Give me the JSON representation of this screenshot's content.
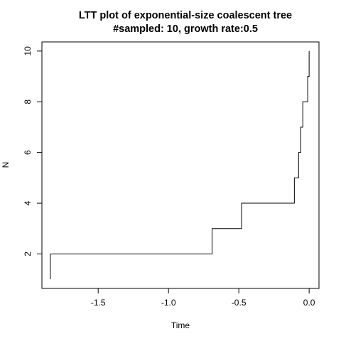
{
  "chart_data": {
    "type": "line",
    "plot_style": "step",
    "title": "LTT plot of exponential-size coalescent tree",
    "subtitle": "#sampled: 10, growth rate:0.5",
    "xlabel": "Time",
    "ylabel": "N",
    "xlim": [
      -1.9,
      0.07
    ],
    "ylim": [
      0.64,
      10.36
    ],
    "x_ticks": [
      -1.5,
      -1.0,
      -0.5,
      0.0
    ],
    "x_tick_labels": [
      "-1.5",
      "-1.0",
      "-0.5",
      "0.0"
    ],
    "y_ticks": [
      2,
      4,
      6,
      8,
      10
    ],
    "y_tick_labels": [
      "2",
      "4",
      "6",
      "8",
      "10"
    ],
    "grid": false,
    "legend": "none",
    "series": [
      {
        "color": "#000000",
        "points": [
          {
            "x": -1.84,
            "y": 1
          },
          {
            "x": -1.84,
            "y": 2
          },
          {
            "x": -0.69,
            "y": 2
          },
          {
            "x": -0.69,
            "y": 3
          },
          {
            "x": -0.48,
            "y": 3
          },
          {
            "x": -0.48,
            "y": 4
          },
          {
            "x": -0.105,
            "y": 4
          },
          {
            "x": -0.105,
            "y": 5
          },
          {
            "x": -0.075,
            "y": 5
          },
          {
            "x": -0.075,
            "y": 6
          },
          {
            "x": -0.06,
            "y": 6
          },
          {
            "x": -0.06,
            "y": 7
          },
          {
            "x": -0.045,
            "y": 7
          },
          {
            "x": -0.045,
            "y": 8
          },
          {
            "x": -0.01,
            "y": 8
          },
          {
            "x": -0.01,
            "y": 9
          },
          {
            "x": 0.0,
            "y": 9
          },
          {
            "x": 0.0,
            "y": 10
          }
        ]
      }
    ]
  }
}
